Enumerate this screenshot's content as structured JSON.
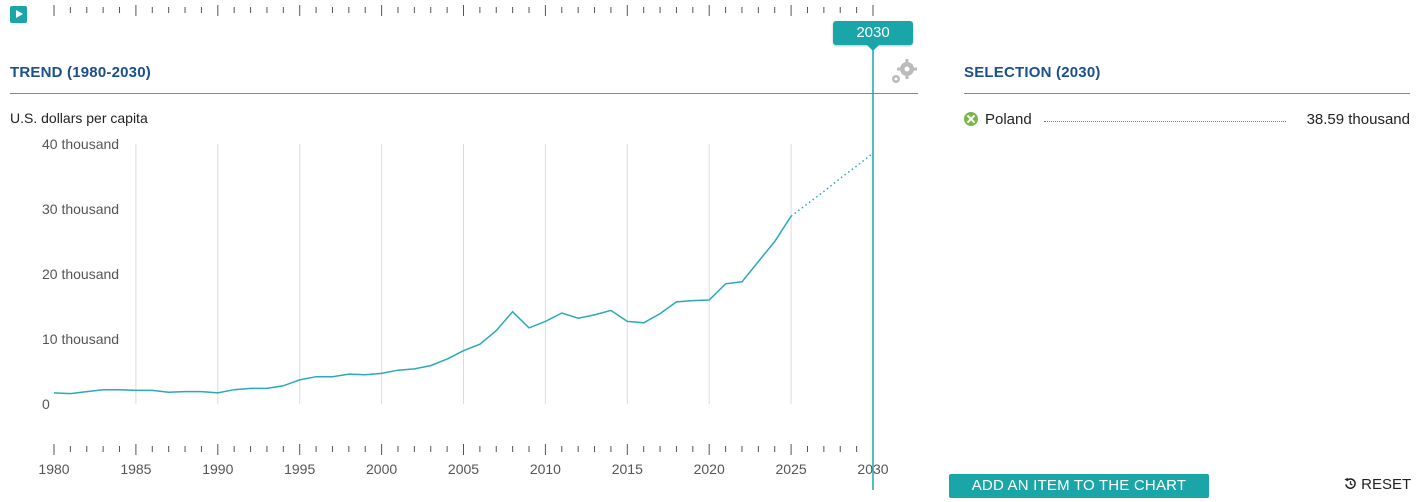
{
  "timeline": {
    "play_icon": "play-icon",
    "current_year": "2030"
  },
  "trend": {
    "title": "TREND (1980-2030)",
    "settings_icon": "gears-icon"
  },
  "selection": {
    "title": "SELECTION (2030)",
    "items": [
      {
        "name": "Poland",
        "value": "38.59 thousand",
        "icon": "remove-icon",
        "color": "#7ab648"
      }
    ]
  },
  "buttons": {
    "add_label": "ADD AN ITEM TO THE CHART",
    "reset_label": "RESET",
    "reset_icon": "history-icon"
  },
  "colors": {
    "accent": "#1aa5a8",
    "title_blue": "#1b4f8f",
    "series_line": "#2ba9b9"
  },
  "chart_data": {
    "type": "line",
    "ylabel": "U.S. dollars per capita",
    "ylim": [
      0,
      40000
    ],
    "xlim": [
      1980,
      2030
    ],
    "y_ticks": [
      {
        "value": 0,
        "label": "0"
      },
      {
        "value": 10000,
        "label": "10 thousand"
      },
      {
        "value": 20000,
        "label": "20 thousand"
      },
      {
        "value": 30000,
        "label": "30 thousand"
      },
      {
        "value": 40000,
        "label": "40 thousand"
      }
    ],
    "x_ticks": [
      "1980",
      "1985",
      "1990",
      "1995",
      "2000",
      "2005",
      "2010",
      "2015",
      "2020",
      "2025",
      "2030"
    ],
    "grid": "vertical",
    "series": [
      {
        "name": "Poland",
        "projection_start": 2025,
        "x": [
          1980,
          1981,
          1982,
          1983,
          1984,
          1985,
          1986,
          1987,
          1988,
          1989,
          1990,
          1991,
          1992,
          1993,
          1994,
          1995,
          1996,
          1997,
          1998,
          1999,
          2000,
          2001,
          2002,
          2003,
          2004,
          2005,
          2006,
          2007,
          2008,
          2009,
          2010,
          2011,
          2012,
          2013,
          2014,
          2015,
          2016,
          2017,
          2018,
          2019,
          2020,
          2021,
          2022,
          2023,
          2024,
          2025,
          2026,
          2027,
          2028,
          2029,
          2030
        ],
        "values": [
          1700,
          1600,
          1900,
          2200,
          2200,
          2100,
          2100,
          1800,
          1900,
          1900,
          1700,
          2200,
          2400,
          2400,
          2800,
          3700,
          4200,
          4200,
          4600,
          4500,
          4700,
          5200,
          5400,
          5900,
          6900,
          8200,
          9200,
          11300,
          14200,
          11700,
          12700,
          14000,
          13200,
          13700,
          14400,
          12700,
          12500,
          13900,
          15700,
          15900,
          16000,
          18500,
          18800,
          21900,
          25000,
          28900,
          30800,
          32700,
          34700,
          36600,
          38590
        ]
      }
    ]
  }
}
